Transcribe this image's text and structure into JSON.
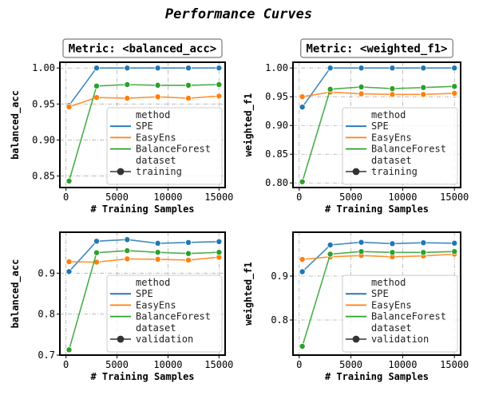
{
  "figure": {
    "title": "Performance Curves"
  },
  "chart_data": [
    {
      "type": "line",
      "title": "Metric: <balanced_acc>",
      "xlabel": "# Training Samples",
      "ylabel": "balanced_acc",
      "xlim": [
        -600,
        15600
      ],
      "ylim": [
        0.834,
        1.008
      ],
      "xticks": [
        0,
        5000,
        10000,
        15000
      ],
      "yticks": [
        0.85,
        0.9,
        0.95,
        1.0
      ],
      "ytick_labels": [
        "0.85",
        "0.90",
        "0.95",
        "1.00"
      ],
      "grid": true,
      "legend_position": "lower right",
      "x": [
        300,
        3000,
        6000,
        9000,
        12000,
        15000
      ],
      "series": [
        {
          "name": "SPE",
          "color": "#1f77b4",
          "values": [
            0.948,
            1.0,
            1.0,
            1.0,
            1.0,
            1.0
          ]
        },
        {
          "name": "EasyEns",
          "color": "#ff7f0e",
          "values": [
            0.946,
            0.959,
            0.958,
            0.96,
            0.958,
            0.961
          ]
        },
        {
          "name": "BalanceForest",
          "color": "#2ca02c",
          "values": [
            0.843,
            0.975,
            0.977,
            0.976,
            0.976,
            0.977
          ]
        }
      ],
      "legend": {
        "method_label": "method",
        "dataset_label": "dataset",
        "dataset_value": "training"
      }
    },
    {
      "type": "line",
      "title": "Metric: <weighted_f1>",
      "xlabel": "# Training Samples",
      "ylabel": "weighted_f1",
      "xlim": [
        -600,
        15600
      ],
      "ylim": [
        0.792,
        1.01
      ],
      "xticks": [
        0,
        5000,
        10000,
        15000
      ],
      "yticks": [
        0.8,
        0.85,
        0.9,
        0.95,
        1.0
      ],
      "ytick_labels": [
        "0.80",
        "0.85",
        "0.90",
        "0.95",
        "1.00"
      ],
      "grid": true,
      "legend_position": "lower right",
      "x": [
        300,
        3000,
        6000,
        9000,
        12000,
        15000
      ],
      "series": [
        {
          "name": "SPE",
          "color": "#1f77b4",
          "values": [
            0.932,
            1.0,
            1.0,
            1.0,
            1.0,
            1.0
          ]
        },
        {
          "name": "EasyEns",
          "color": "#ff7f0e",
          "values": [
            0.95,
            0.958,
            0.955,
            0.954,
            0.954,
            0.956
          ]
        },
        {
          "name": "BalanceForest",
          "color": "#2ca02c",
          "values": [
            0.802,
            0.963,
            0.967,
            0.964,
            0.966,
            0.968
          ]
        }
      ],
      "legend": {
        "method_label": "method",
        "dataset_label": "dataset",
        "dataset_value": "training"
      }
    },
    {
      "type": "line",
      "title": "",
      "xlabel": "# Training Samples",
      "ylabel": "balanced_acc",
      "xlim": [
        -600,
        15600
      ],
      "ylim": [
        0.7,
        1.0
      ],
      "xticks": [
        0,
        5000,
        10000,
        15000
      ],
      "yticks": [
        0.7,
        0.8,
        0.9
      ],
      "ytick_labels": [
        "0.7",
        "0.8",
        "0.9"
      ],
      "grid": true,
      "legend_position": "lower right",
      "x": [
        300,
        3000,
        6000,
        9000,
        12000,
        15000
      ],
      "series": [
        {
          "name": "SPE",
          "color": "#1f77b4",
          "values": [
            0.904,
            0.978,
            0.982,
            0.973,
            0.975,
            0.977
          ]
        },
        {
          "name": "EasyEns",
          "color": "#ff7f0e",
          "values": [
            0.928,
            0.927,
            0.935,
            0.934,
            0.932,
            0.939
          ]
        },
        {
          "name": "BalanceForest",
          "color": "#2ca02c",
          "values": [
            0.713,
            0.95,
            0.955,
            0.951,
            0.948,
            0.951
          ]
        }
      ],
      "legend": {
        "method_label": "method",
        "dataset_label": "dataset",
        "dataset_value": "validation"
      }
    },
    {
      "type": "line",
      "title": "",
      "xlabel": "# Training Samples",
      "ylabel": "weighted_f1",
      "xlim": [
        -600,
        15600
      ],
      "ylim": [
        0.72,
        1.0
      ],
      "xticks": [
        0,
        5000,
        10000,
        15000
      ],
      "yticks": [
        0.8,
        0.9
      ],
      "ytick_labels": [
        "0.8",
        "0.9"
      ],
      "grid": true,
      "legend_position": "lower right",
      "x": [
        300,
        3000,
        6000,
        9000,
        12000,
        15000
      ],
      "series": [
        {
          "name": "SPE",
          "color": "#1f77b4",
          "values": [
            0.91,
            0.971,
            0.977,
            0.974,
            0.976,
            0.975
          ]
        },
        {
          "name": "EasyEns",
          "color": "#ff7f0e",
          "values": [
            0.938,
            0.944,
            0.947,
            0.944,
            0.946,
            0.95
          ]
        },
        {
          "name": "BalanceForest",
          "color": "#2ca02c",
          "values": [
            0.74,
            0.95,
            0.956,
            0.954,
            0.954,
            0.956
          ]
        }
      ],
      "legend": {
        "method_label": "method",
        "dataset_label": "dataset",
        "dataset_value": "validation"
      }
    }
  ]
}
